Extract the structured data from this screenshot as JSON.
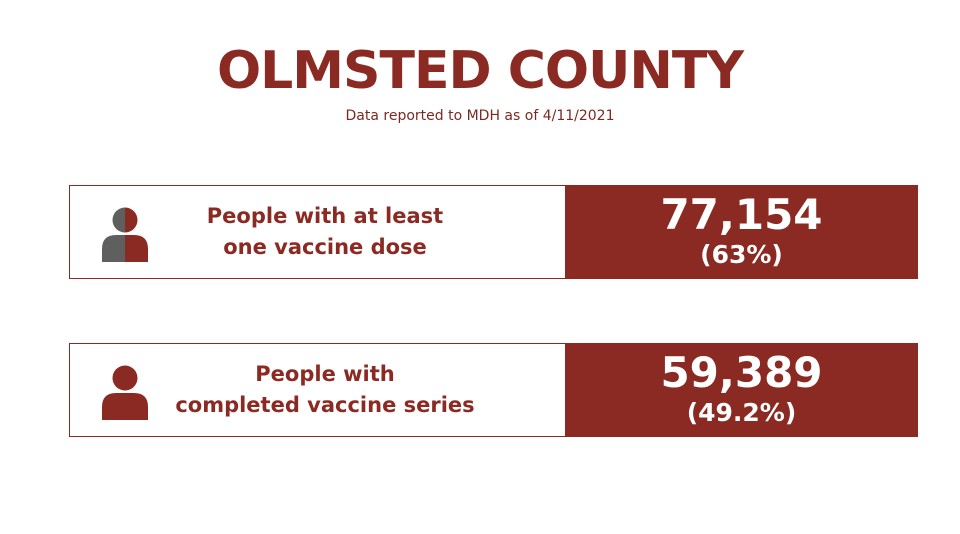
{
  "header": {
    "title": "OLMSTED COUNTY",
    "subtitle": "Data reported to MDH as of 4/11/2021"
  },
  "stats": [
    {
      "label_line1": "People with at least",
      "label_line2": "one vaccine dose",
      "value": "77,154",
      "percent": "(63%)",
      "icon": "person-half-filled-icon"
    },
    {
      "label_line1": "People with",
      "label_line2": "completed vaccine series",
      "value": "59,389",
      "percent": "(49.2%)",
      "icon": "person-filled-icon"
    }
  ],
  "colors": {
    "accent": "#8b2a22",
    "icon_gray": "#5f5f5f",
    "background": "#ffffff"
  }
}
